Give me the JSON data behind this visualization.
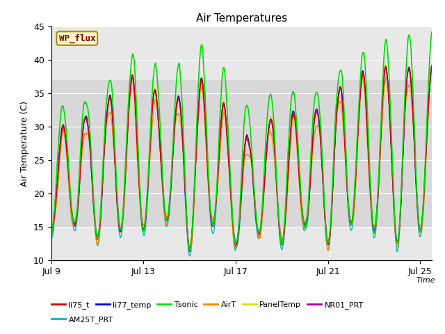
{
  "title": "Air Temperatures",
  "xlabel": "Time",
  "ylabel": "Air Temperature (C)",
  "ylim": [
    10,
    45
  ],
  "xlim": [
    0,
    16.5
  ],
  "yticks": [
    10,
    15,
    20,
    25,
    30,
    35,
    40,
    45
  ],
  "xtick_labels": [
    "Jul 9",
    "Jul 13",
    "Jul 17",
    "Jul 21",
    "Jul 25"
  ],
  "xtick_positions": [
    0,
    4,
    8,
    12,
    16
  ],
  "series": {
    "li75_t": {
      "color": "#dd0000",
      "lw": 1.0
    },
    "li77_temp": {
      "color": "#0000dd",
      "lw": 1.0
    },
    "Tsonic": {
      "color": "#00dd00",
      "lw": 1.2
    },
    "AirT": {
      "color": "#ff8800",
      "lw": 1.0
    },
    "PanelTemp": {
      "color": "#dddd00",
      "lw": 1.0
    },
    "NR01_PRT": {
      "color": "#aa00aa",
      "lw": 1.0
    },
    "AM25T_PRT": {
      "color": "#00bbbb",
      "lw": 1.0
    }
  },
  "legend_box": {
    "text": "WP_flux",
    "facecolor": "#ffffcc",
    "edgecolor": "#aa8800",
    "textcolor": "#880000"
  },
  "plot_bg": "#e8e8e8",
  "grid_color": "#ffffff",
  "fig_bg": "#ffffff",
  "shaded_band": [
    15,
    37
  ],
  "shaded_color": "#d8d8d8"
}
